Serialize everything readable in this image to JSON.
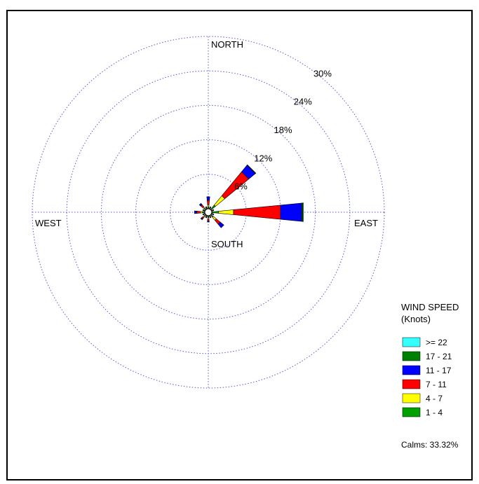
{
  "chart_data": {
    "type": "wind-rose",
    "directions": [
      "N",
      "NNE",
      "NE",
      "ENE",
      "E",
      "ESE",
      "SE",
      "SSE",
      "S",
      "SSW",
      "SW",
      "WSW",
      "W",
      "WNW",
      "NW",
      "NNW"
    ],
    "direction_labels": {
      "north": "NORTH",
      "east": "EAST",
      "south": "SOUTH",
      "west": "WEST"
    },
    "rings": [
      6,
      12,
      18,
      24,
      30
    ],
    "ring_labels": [
      "6%",
      "12%",
      "18%",
      "24%",
      "30%"
    ],
    "legend": {
      "title_line1": "WIND SPEED",
      "title_line2": "(Knots)",
      "bins": [
        {
          "label": ">= 22",
          "color": "#33ffff"
        },
        {
          "label": "17 - 21",
          "color": "#008000"
        },
        {
          "label": "11 - 17",
          "color": "#0000ff"
        },
        {
          "label": "7 - 11",
          "color": "#ff0000"
        },
        {
          "label": "4 - 7",
          "color": "#ffff00"
        },
        {
          "label": "1 - 4",
          "color": "#00a000"
        }
      ],
      "calms": "Calms: 33.32%"
    },
    "series": [
      {
        "bin": "1 - 4",
        "values": [
          0.3,
          0.1,
          1.0,
          0.1,
          1.2,
          0.1,
          0.5,
          0.1,
          0.3,
          0.1,
          0.3,
          0.1,
          0.4,
          0.1,
          0.3,
          0.1
        ]
      },
      {
        "bin": "4 - 7",
        "values": [
          0.4,
          0.1,
          2.1,
          0.1,
          2.6,
          0.1,
          0.7,
          0.1,
          0.3,
          0.1,
          0.3,
          0.1,
          0.4,
          0.1,
          0.3,
          0.1
        ]
      },
      {
        "bin": "7 - 11",
        "values": [
          0.8,
          0.1,
          5.4,
          0.1,
          8.2,
          0.1,
          0.9,
          0.1,
          0.3,
          0.1,
          0.3,
          0.1,
          0.6,
          0.1,
          0.5,
          0.1
        ]
      },
      {
        "bin": "11 - 17",
        "values": [
          0.6,
          0.1,
          1.5,
          0.1,
          3.7,
          0.1,
          0.8,
          0.1,
          0.2,
          0.1,
          0.2,
          0.1,
          0.4,
          0.1,
          0.3,
          0.1
        ]
      },
      {
        "bin": "17 - 21",
        "values": [
          0,
          0,
          0.1,
          0,
          0.2,
          0,
          0,
          0,
          0,
          0,
          0,
          0,
          0,
          0,
          0,
          0
        ]
      },
      {
        "bin": ">= 22",
        "values": [
          0,
          0,
          0,
          0,
          0.1,
          0,
          0,
          0,
          0,
          0,
          0,
          0,
          0,
          0,
          0,
          0
        ]
      }
    ]
  }
}
